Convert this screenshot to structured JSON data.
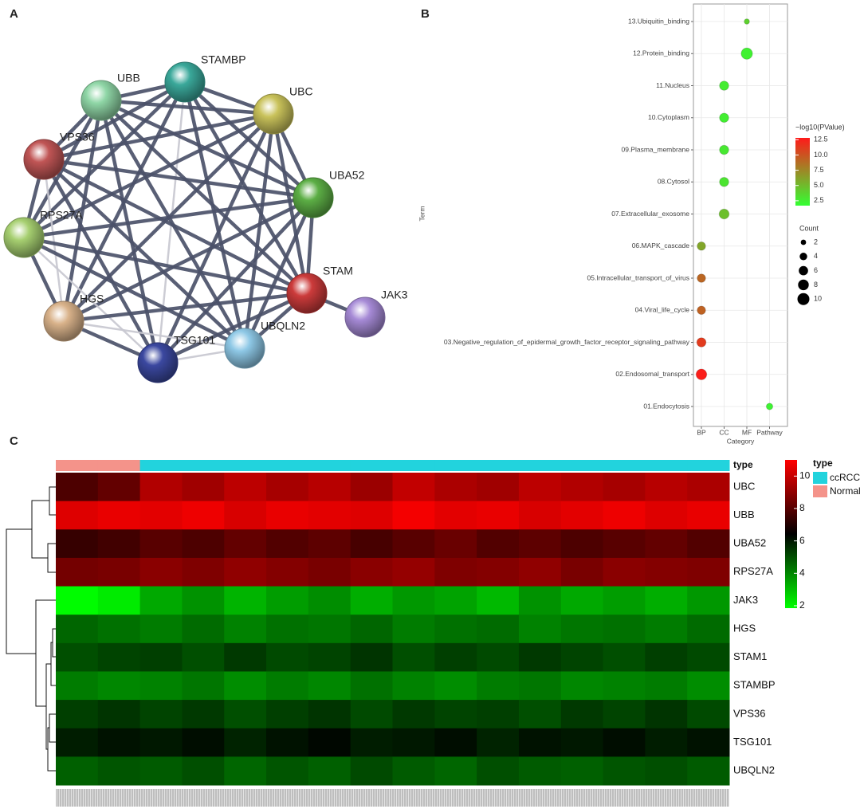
{
  "panel_labels": [
    "A",
    "B",
    "C"
  ],
  "network": {
    "nodes": [
      {
        "label": "STAMBP",
        "color": "#3aa89a"
      },
      {
        "label": "UBB",
        "color": "#8fd6a6"
      },
      {
        "label": "UBC",
        "color": "#c9c25a"
      },
      {
        "label": "VPS36",
        "color": "#c05555"
      },
      {
        "label": "UBA52",
        "color": "#5cae45"
      },
      {
        "label": "RPS27A",
        "color": "#a6cf70"
      },
      {
        "label": "STAM",
        "color": "#cc3b3b"
      },
      {
        "label": "JAK3",
        "color": "#a68ad6"
      },
      {
        "label": "HGS",
        "color": "#d9b28a"
      },
      {
        "label": "UBQLN2",
        "color": "#8ec8e6"
      },
      {
        "label": "TSG101",
        "color": "#3b48a0"
      }
    ]
  },
  "chart_data": [
    {
      "type": "bubble",
      "ylabel": "Term",
      "xlabel": "Category",
      "x_categories": [
        "BP",
        "CC",
        "MF",
        "Pathway"
      ],
      "terms": [
        "01.Endocytosis",
        "02.Endosomal_transport",
        "03.Negative_regulation_of_epidermal_growth_factor_receptor_signaling_pathway",
        "04.Viral_life_cycle",
        "05.Intracellular_transport_of_virus",
        "06.MAPK_cascade",
        "07.Extracellular_exosome",
        "08.Cytosol",
        "09.Plasma_membrane",
        "10.Cytoplasm",
        "11.Nucleus",
        "12.Protein_binding",
        "13.Ubiquitin_binding"
      ],
      "category": [
        "Pathway",
        "BP",
        "BP",
        "BP",
        "BP",
        "BP",
        "CC",
        "CC",
        "CC",
        "CC",
        "CC",
        "MF",
        "MF"
      ],
      "count": [
        3,
        8,
        6,
        5,
        5,
        5,
        7,
        6,
        6,
        6,
        6,
        9,
        2
      ],
      "neg_log10_p": [
        2.3,
        12.6,
        11.2,
        9.3,
        9.1,
        6.0,
        4.8,
        3.0,
        2.8,
        2.5,
        2.6,
        2.4,
        4.0
      ],
      "color_legend_title": "−log10(PValue)",
      "colors": [
        "#33ff33",
        "#ff1a1a"
      ],
      "color_lim": [
        1.7,
        12.8
      ],
      "color_ticks": [
        2.5,
        {
          "value": 5,
          "label": "5.0"
        },
        7.5,
        {
          "value": 10,
          "label": "10.0"
        },
        12.5
      ],
      "size_legend_title": "Count",
      "size_legend": [
        2,
        4,
        6,
        8,
        10
      ],
      "grid": true
    },
    {
      "type": "heatmap",
      "rows": [
        "UBC",
        "UBB",
        "UBA52",
        "RPS27A",
        "JAK3",
        "HGS",
        "STAM1",
        "STAMBP",
        "VPS36",
        "TSG101",
        "UBQLN2"
      ],
      "sample_type": [
        "Normal",
        "Normal",
        "ccRCC",
        "ccRCC",
        "ccRCC",
        "ccRCC",
        "ccRCC",
        "ccRCC",
        "ccRCC",
        "ccRCC",
        "ccRCC",
        "ccRCC",
        "ccRCC",
        "ccRCC",
        "ccRCC",
        "ccRCC"
      ],
      "values": [
        [
          7.8,
          8.2,
          9.6,
          9.3,
          9.8,
          9.4,
          9.7,
          9.2,
          9.9,
          9.5,
          9.3,
          9.8,
          9.6,
          9.4,
          9.7,
          9.5
        ],
        [
          10.4,
          10.6,
          10.5,
          10.7,
          10.3,
          10.6,
          10.5,
          10.4,
          10.8,
          10.5,
          10.6,
          10.3,
          10.5,
          10.7,
          10.4,
          10.6
        ],
        [
          7.4,
          7.6,
          8.0,
          7.8,
          8.2,
          7.9,
          8.1,
          7.7,
          8.0,
          8.3,
          7.9,
          8.1,
          7.8,
          8.0,
          8.2,
          7.9
        ],
        [
          8.5,
          8.6,
          8.9,
          8.7,
          9.0,
          8.8,
          8.6,
          8.9,
          9.1,
          8.7,
          8.8,
          9.0,
          8.6,
          8.9,
          8.8,
          8.7
        ],
        [
          1.9,
          2.2,
          3.4,
          3.8,
          3.2,
          3.6,
          3.9,
          3.3,
          3.7,
          3.5,
          3.1,
          3.8,
          3.4,
          3.6,
          3.3,
          3.7
        ],
        [
          4.6,
          4.4,
          4.2,
          4.5,
          4.1,
          4.4,
          4.3,
          4.6,
          4.2,
          4.4,
          4.5,
          4.1,
          4.3,
          4.4,
          4.2,
          4.5
        ],
        [
          5.0,
          5.2,
          5.3,
          5.0,
          5.4,
          5.1,
          5.2,
          5.5,
          5.0,
          5.3,
          5.1,
          5.4,
          5.2,
          5.0,
          5.3,
          5.1
        ],
        [
          4.2,
          4.0,
          4.1,
          4.3,
          3.9,
          4.2,
          4.0,
          4.4,
          4.1,
          3.9,
          4.2,
          4.3,
          4.0,
          4.1,
          4.2,
          3.9
        ],
        [
          5.3,
          5.5,
          5.2,
          5.4,
          5.0,
          5.3,
          5.5,
          5.1,
          5.4,
          5.2,
          5.3,
          5.0,
          5.4,
          5.2,
          5.5,
          5.1
        ],
        [
          5.9,
          6.1,
          6.0,
          6.2,
          5.8,
          6.1,
          6.3,
          5.9,
          6.0,
          6.2,
          5.8,
          6.1,
          6.0,
          6.2,
          5.9,
          6.1
        ],
        [
          4.7,
          4.9,
          4.8,
          5.0,
          4.6,
          4.9,
          4.7,
          5.1,
          4.8,
          4.6,
          5.0,
          4.8,
          4.7,
          4.9,
          5.0,
          4.8
        ]
      ],
      "colors": [
        "#00ff00",
        "#000000",
        "#ff0000"
      ],
      "color_lim": [
        1.85,
        11
      ],
      "color_ticks": [
        2,
        4,
        6,
        8,
        10
      ],
      "annotation_label": "type",
      "legend_title": "type",
      "groups": [
        {
          "name": "ccRCC",
          "color": "#22d3dd"
        },
        {
          "name": "Normal",
          "color": "#f4938a"
        }
      ]
    }
  ]
}
